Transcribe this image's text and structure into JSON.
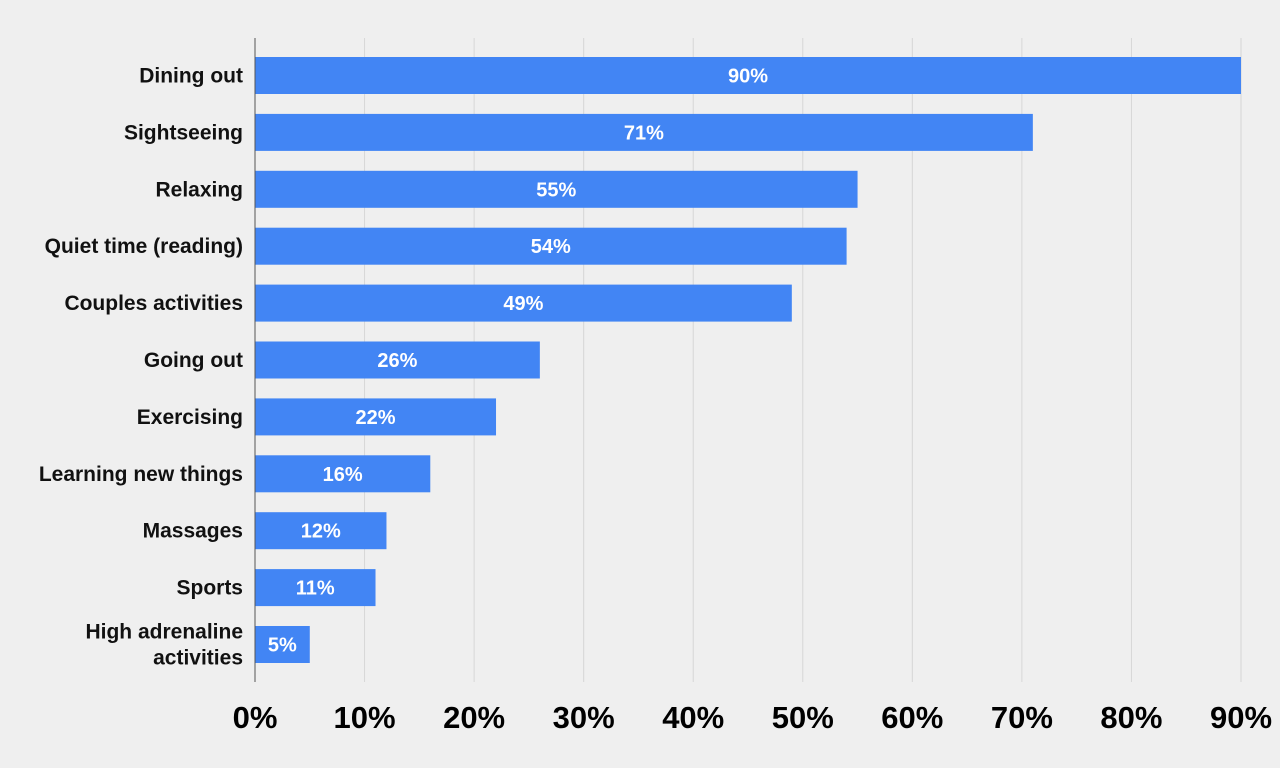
{
  "chart_data": {
    "type": "bar",
    "orientation": "horizontal",
    "categories": [
      "Dining out",
      "Sightseeing",
      "Relaxing",
      "Quiet time (reading)",
      "Couples activities",
      "Going out",
      "Exercising",
      "Learning new things",
      "Massages",
      "Sports",
      "High adrenaline activities"
    ],
    "values": [
      90,
      71,
      55,
      54,
      49,
      26,
      22,
      16,
      12,
      11,
      5
    ],
    "data_labels": [
      "90%",
      "71%",
      "55%",
      "54%",
      "49%",
      "26%",
      "22%",
      "16%",
      "12%",
      "11%",
      "5%"
    ],
    "xlim": [
      0,
      90
    ],
    "xticks": [
      0,
      10,
      20,
      30,
      40,
      50,
      60,
      70,
      80,
      90
    ],
    "xtick_labels": [
      "0%",
      "10%",
      "20%",
      "30%",
      "40%",
      "50%",
      "60%",
      "70%",
      "80%",
      "90%"
    ],
    "grid": "vertical",
    "legend": "none",
    "bar_color": "#4285f4",
    "background_color": "#efefef",
    "grid_color": "#d6d6d6",
    "axis_color": "#555555"
  }
}
